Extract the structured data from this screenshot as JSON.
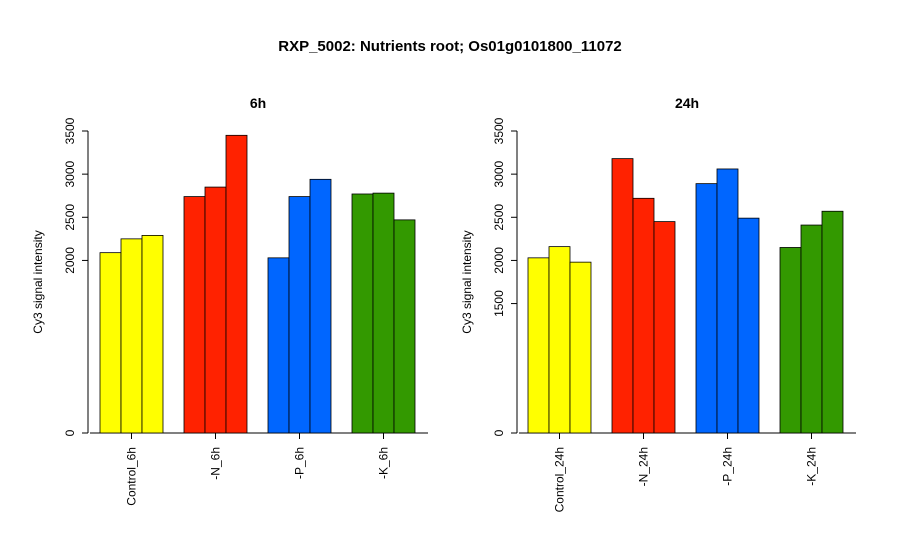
{
  "title": "RXP_5002: Nutrients root; Os01g0101800_11072",
  "chart_data": [
    {
      "type": "bar",
      "title": "6h",
      "ylabel": "Cy3 signal intensity",
      "ylim": [
        0,
        3500
      ],
      "yticks": [
        0,
        2000,
        2500,
        3000,
        3500
      ],
      "categories": [
        "Control_6h",
        "-N_6h",
        "-P_6h",
        "-K_6h"
      ],
      "group_colors": [
        "#FFFF00",
        "#FF2200",
        "#0066FF",
        "#339900"
      ],
      "values": [
        [
          2090,
          2250,
          2290
        ],
        [
          2740,
          2850,
          3450
        ],
        [
          2030,
          2740,
          2940
        ],
        [
          2770,
          2780,
          2470
        ]
      ]
    },
    {
      "type": "bar",
      "title": "24h",
      "ylabel": "Cy3 signal intensity",
      "ylim": [
        0,
        3500
      ],
      "yticks": [
        0,
        1500,
        2000,
        2500,
        3000,
        3500
      ],
      "categories": [
        "Control_24h",
        "-N_24h",
        "-P_24h",
        "-K_24h"
      ],
      "group_colors": [
        "#FFFF00",
        "#FF2200",
        "#0066FF",
        "#339900"
      ],
      "values": [
        [
          2030,
          2160,
          1980
        ],
        [
          3180,
          2720,
          2450
        ],
        [
          2890,
          3060,
          2490
        ],
        [
          2150,
          2410,
          2570
        ]
      ]
    }
  ]
}
